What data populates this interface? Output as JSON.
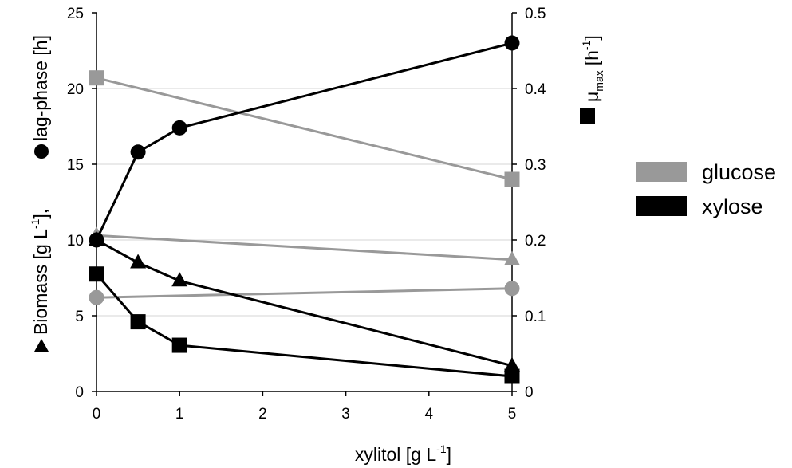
{
  "chart_data": {
    "type": "line",
    "x": [
      0,
      0.5,
      1,
      5
    ],
    "xlim": [
      0,
      5
    ],
    "xticks": [
      "0",
      "1",
      "2",
      "3",
      "4",
      "5"
    ],
    "ylim_left": [
      0,
      25
    ],
    "yticks_left": [
      "0",
      "5",
      "10",
      "15",
      "20",
      "25"
    ],
    "ylim_right": [
      0,
      0.5
    ],
    "yticks_right": [
      "0",
      "0.1",
      "0.2",
      "0.3",
      "0.4",
      "0.5"
    ],
    "xlabel": {
      "main": "xylitol [g L",
      "sup": "-1",
      "tail": "]"
    },
    "ylabel_left": {
      "biomass": "Biomass [g L",
      "biomass_sup": "-1",
      "biomass_tail": "],",
      "lag": "lag-phase [h]"
    },
    "ylabel_right": {
      "mu": "μ",
      "sub": "max",
      "unit": "[h",
      "sup": "-1",
      "tail": "]"
    },
    "grid": "horizontal",
    "colors": {
      "glucose": "#999999",
      "xylose": "#000000"
    },
    "legend": {
      "position": "right",
      "entries": [
        {
          "name": "glucose",
          "color": "#999999"
        },
        {
          "name": "xylose",
          "color": "#000000"
        }
      ]
    },
    "series": [
      {
        "measure": "mu_max",
        "substrate": "glucose",
        "marker": "square",
        "axis": "right",
        "x": [
          0,
          5
        ],
        "y": [
          0.414,
          0.28
        ]
      },
      {
        "measure": "lag_phase",
        "substrate": "glucose",
        "marker": "circle",
        "axis": "left",
        "x": [
          0,
          5
        ],
        "y": [
          6.2,
          6.8
        ]
      },
      {
        "measure": "biomass",
        "substrate": "glucose",
        "marker": "triangle",
        "axis": "left",
        "x": [
          0,
          5
        ],
        "y": [
          10.3,
          8.7
        ]
      },
      {
        "measure": "lag_phase",
        "substrate": "xylose",
        "marker": "circle",
        "axis": "left",
        "x": [
          0,
          0.5,
          1,
          5
        ],
        "y": [
          10.0,
          15.8,
          17.4,
          23.0
        ]
      },
      {
        "measure": "biomass",
        "substrate": "xylose",
        "marker": "triangle",
        "axis": "left",
        "x": [
          0,
          0.5,
          1,
          5
        ],
        "y": [
          10.0,
          8.5,
          7.3,
          1.7
        ]
      },
      {
        "measure": "mu_max",
        "substrate": "xylose",
        "marker": "square",
        "axis": "right",
        "x": [
          0,
          0.5,
          1,
          5
        ],
        "y": [
          0.155,
          0.092,
          0.061,
          0.02
        ]
      }
    ]
  }
}
